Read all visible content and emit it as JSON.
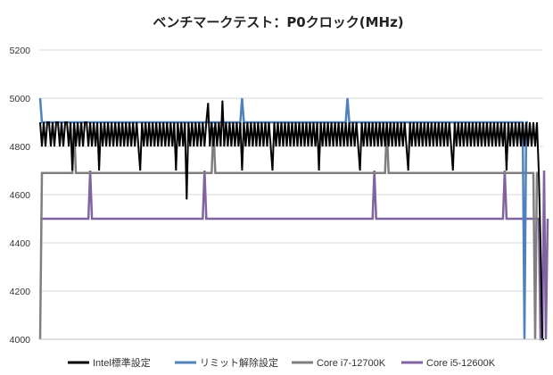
{
  "chart_data": {
    "type": "line",
    "title": "ベンチマークテスト：P0クロック(MHz)",
    "xlabel": "",
    "ylabel": "",
    "ylim": [
      4000,
      5200
    ],
    "yticks": [
      4000,
      4200,
      4400,
      4600,
      4800,
      5000,
      5200
    ],
    "grid": true,
    "legend_position": "bottom",
    "samples": 280,
    "series": [
      {
        "name": "Intel標準設定",
        "color": "#000000",
        "values": [
          4900,
          4800,
          4900,
          4800,
          4900,
          4900,
          4800,
          4900,
          4800,
          4900,
          4900,
          4800,
          4900,
          4800,
          4900,
          4900,
          4800,
          4900,
          4700,
          4900,
          4800,
          4900,
          4800,
          4900,
          4800,
          4900,
          4900,
          4800,
          4900,
          4800,
          4900,
          4800,
          4900,
          4700,
          4900,
          4800,
          4900,
          4800,
          4900,
          4800,
          4900,
          4800,
          4900,
          4800,
          4900,
          4800,
          4900,
          4800,
          4900,
          4800,
          4900,
          4800,
          4900,
          4800,
          4900,
          4800,
          4700,
          4900,
          4800,
          4900,
          4800,
          4900,
          4800,
          4900,
          4800,
          4900,
          4800,
          4900,
          4800,
          4900,
          4800,
          4900,
          4800,
          4900,
          4800,
          4900,
          4700,
          4900,
          4800,
          4900,
          4800,
          4900,
          4580,
          4900,
          4800,
          4900,
          4800,
          4900,
          4800,
          4900,
          4800,
          4900,
          4800,
          4900,
          4980,
          4800,
          4900,
          4800,
          4900,
          4800,
          4900,
          4800,
          4990,
          4800,
          4900,
          4800,
          4900,
          4800,
          4900,
          4800,
          4900,
          4800,
          4900,
          4700,
          4900,
          4800,
          4900,
          4800,
          4900,
          4800,
          4900,
          4800,
          4900,
          4800,
          4900,
          4800,
          4900,
          4800,
          4900,
          4800,
          4700,
          4900,
          4800,
          4900,
          4800,
          4900,
          4800,
          4900,
          4800,
          4900,
          4800,
          4900,
          4800,
          4900,
          4800,
          4900,
          4800,
          4900,
          4800,
          4900,
          4800,
          4900,
          4800,
          4900,
          4800,
          4900,
          4700,
          4900,
          4800,
          4900,
          4800,
          4900,
          4800,
          4900,
          4800,
          4900,
          4800,
          4900,
          4800,
          4900,
          4800,
          4900,
          4800,
          4900,
          4800,
          4900,
          4800,
          4900,
          4800,
          4700,
          4900,
          4800,
          4900,
          4800,
          4900,
          4800,
          4900,
          4800,
          4900,
          4800,
          4900,
          4800,
          4900,
          4800,
          4900,
          4800,
          4900,
          4800,
          4900,
          4800,
          4900,
          4800,
          4900,
          4800,
          4900,
          4800,
          4700,
          4900,
          4800,
          4900,
          4800,
          4900,
          4800,
          4900,
          4800,
          4900,
          4800,
          4900,
          4800,
          4900,
          4800,
          4900,
          4800,
          4900,
          4800,
          4900,
          4800,
          4900,
          4800,
          4900,
          4800,
          4700,
          4900,
          4800,
          4900,
          4800,
          4900,
          4800,
          4900,
          4800,
          4900,
          4800,
          4900,
          4800,
          4900,
          4800,
          4900,
          4800,
          4900,
          4800,
          4900,
          4800,
          4900,
          4800,
          4900,
          4800,
          4900,
          4800,
          4900,
          4800,
          4900,
          4700,
          4900,
          4800,
          4900,
          4800,
          4900,
          4800,
          4900,
          4800,
          4900,
          4800,
          4900,
          4800,
          4900,
          4800,
          4900,
          4800,
          4900,
          4700,
          4400,
          4000,
          4000
        ]
      },
      {
        "name": "リミット解除設定",
        "color": "#4F81BD",
        "values": [
          5000,
          4900,
          4900,
          4900,
          4900,
          4900,
          4900,
          4900,
          4900,
          4900,
          4900,
          4900,
          4900,
          4900,
          4900,
          4900,
          4900,
          4900,
          4900,
          4900,
          4900,
          4900,
          4900,
          4900,
          4900,
          4900,
          4900,
          4900,
          4900,
          4900,
          4900,
          4900,
          4900,
          4900,
          4900,
          4900,
          4900,
          4900,
          4900,
          4900,
          4900,
          4900,
          4900,
          4900,
          4900,
          4900,
          4900,
          4900,
          4900,
          4900,
          4900,
          4900,
          4900,
          4900,
          4900,
          4900,
          4900,
          4900,
          4900,
          4900,
          4900,
          4900,
          4900,
          4900,
          4900,
          4900,
          4900,
          4900,
          4900,
          4900,
          4900,
          4900,
          4900,
          4900,
          4900,
          4900,
          4900,
          4900,
          4900,
          4900,
          4900,
          4900,
          4900,
          4900,
          4900,
          4900,
          4900,
          4900,
          4900,
          4900,
          4900,
          4900,
          4900,
          4900,
          4900,
          4900,
          4900,
          4900,
          4900,
          4900,
          4900,
          4900,
          4900,
          4900,
          4900,
          4900,
          4900,
          4900,
          4900,
          4900,
          4900,
          4900,
          4900,
          5000,
          4900,
          4900,
          4900,
          4900,
          4900,
          4900,
          4900,
          4900,
          4900,
          4900,
          4900,
          4900,
          4900,
          4900,
          4900,
          4900,
          4900,
          4900,
          4900,
          4900,
          4900,
          4900,
          4900,
          4900,
          4900,
          4900,
          4900,
          4900,
          4900,
          4900,
          4900,
          4900,
          4900,
          4900,
          4900,
          4900,
          4900,
          4900,
          4900,
          4900,
          4900,
          4900,
          4900,
          4900,
          4900,
          4900,
          4900,
          4900,
          4900,
          4900,
          4900,
          4900,
          4900,
          4900,
          4900,
          4900,
          4900,
          4900,
          5000,
          4900,
          4900,
          4900,
          4900,
          4900,
          4900,
          4900,
          4900,
          4900,
          4900,
          4900,
          4900,
          4900,
          4900,
          4900,
          4900,
          4900,
          4900,
          4900,
          4900,
          4900,
          4900,
          4900,
          4900,
          4900,
          4900,
          4900,
          4900,
          4900,
          4900,
          4900,
          4900,
          4900,
          4900,
          4900,
          4900,
          4900,
          4900,
          4900,
          4900,
          4900,
          4900,
          4900,
          4900,
          4900,
          4900,
          4900,
          4900,
          4900,
          4900,
          4900,
          4900,
          4900,
          4900,
          4900,
          4900,
          4900,
          4900,
          4900,
          4900,
          4900,
          4900,
          4900,
          4900,
          4900,
          4900,
          4900,
          4900,
          4900,
          4900,
          4900,
          4900,
          4900,
          4900,
          4900,
          4900,
          4900,
          4900,
          4900,
          4900,
          4900,
          4900,
          4900,
          4900,
          4900,
          4900,
          4900,
          4900,
          4900,
          4900,
          4900,
          4900,
          4900,
          4900,
          4900,
          4900,
          4900,
          4900,
          4000,
          4900,
          4900
        ]
      },
      {
        "name": "Core i7-12700K",
        "color": "#7F7F7F",
        "values": [
          4000,
          4690,
          4690,
          4690,
          4690,
          4690,
          4690,
          4690,
          4690,
          4690,
          4690,
          4690,
          4690,
          4690,
          4690,
          4690,
          4690,
          4690,
          4690,
          4880,
          4690,
          4690,
          4690,
          4690,
          4690,
          4690,
          4690,
          4690,
          4690,
          4690,
          4690,
          4690,
          4690,
          4690,
          4690,
          4690,
          4690,
          4690,
          4690,
          4690,
          4690,
          4690,
          4690,
          4690,
          4690,
          4690,
          4690,
          4690,
          4690,
          4690,
          4690,
          4690,
          4690,
          4690,
          4690,
          4690,
          4690,
          4690,
          4690,
          4690,
          4690,
          4690,
          4690,
          4690,
          4690,
          4690,
          4690,
          4690,
          4690,
          4690,
          4690,
          4690,
          4690,
          4690,
          4690,
          4690,
          4690,
          4690,
          4690,
          4690,
          4690,
          4690,
          4690,
          4690,
          4690,
          4690,
          4690,
          4690,
          4690,
          4690,
          4690,
          4690,
          4690,
          4690,
          4690,
          4690,
          4690,
          4880,
          4690,
          4690,
          4690,
          4690,
          4690,
          4690,
          4690,
          4690,
          4690,
          4690,
          4690,
          4690,
          4690,
          4690,
          4690,
          4690,
          4690,
          4690,
          4690,
          4690,
          4690,
          4690,
          4690,
          4690,
          4690,
          4690,
          4690,
          4690,
          4690,
          4690,
          4690,
          4690,
          4690,
          4690,
          4690,
          4690,
          4690,
          4690,
          4690,
          4690,
          4690,
          4690,
          4690,
          4690,
          4690,
          4690,
          4690,
          4690,
          4690,
          4690,
          4690,
          4690,
          4690,
          4690,
          4690,
          4690,
          4690,
          4690,
          4690,
          4690,
          4690,
          4690,
          4690,
          4690,
          4690,
          4690,
          4690,
          4690,
          4690,
          4690,
          4690,
          4690,
          4690,
          4690,
          4690,
          4690,
          4690,
          4690,
          4690,
          4690,
          4690,
          4690,
          4690,
          4690,
          4690,
          4690,
          4690,
          4690,
          4690,
          4690,
          4690,
          4690,
          4690,
          4690,
          4690,
          4690,
          4880,
          4690,
          4690,
          4690,
          4690,
          4690,
          4690,
          4690,
          4690,
          4690,
          4690,
          4690,
          4690,
          4690,
          4690,
          4690,
          4690,
          4690,
          4690,
          4690,
          4690,
          4690,
          4690,
          4690,
          4690,
          4690,
          4690,
          4690,
          4690,
          4690,
          4690,
          4690,
          4690,
          4690,
          4690,
          4690,
          4690,
          4690,
          4690,
          4690,
          4690,
          4690,
          4690,
          4690,
          4690,
          4690,
          4690,
          4690,
          4690,
          4690,
          4690,
          4690,
          4690,
          4690,
          4690,
          4690,
          4690,
          4690,
          4690,
          4690,
          4690,
          4690,
          4690,
          4690,
          4690,
          4690,
          4690,
          4690,
          4690,
          4690,
          4690,
          4690,
          4690,
          4690,
          4690,
          4690,
          4690,
          4690,
          4690,
          4690,
          4690,
          4690,
          4690,
          4000,
          4690,
          4690
        ]
      },
      {
        "name": "Core i5-12600K",
        "color": "#8064A2",
        "values": [
          4500,
          4500,
          4500,
          4500,
          4500,
          4500,
          4500,
          4500,
          4500,
          4500,
          4500,
          4500,
          4500,
          4500,
          4500,
          4500,
          4500,
          4500,
          4500,
          4500,
          4500,
          4500,
          4500,
          4500,
          4500,
          4500,
          4500,
          4500,
          4700,
          4500,
          4500,
          4500,
          4500,
          4500,
          4500,
          4500,
          4500,
          4500,
          4500,
          4500,
          4500,
          4500,
          4500,
          4500,
          4500,
          4500,
          4500,
          4500,
          4500,
          4500,
          4500,
          4500,
          4500,
          4500,
          4500,
          4500,
          4500,
          4500,
          4500,
          4500,
          4500,
          4500,
          4500,
          4500,
          4500,
          4500,
          4500,
          4500,
          4500,
          4500,
          4500,
          4500,
          4500,
          4500,
          4500,
          4500,
          4500,
          4500,
          4500,
          4500,
          4500,
          4500,
          4500,
          4500,
          4500,
          4500,
          4500,
          4500,
          4500,
          4500,
          4500,
          4500,
          4700,
          4500,
          4500,
          4500,
          4500,
          4500,
          4500,
          4500,
          4500,
          4500,
          4500,
          4500,
          4500,
          4500,
          4500,
          4500,
          4500,
          4500,
          4500,
          4500,
          4500,
          4500,
          4500,
          4500,
          4500,
          4500,
          4500,
          4500,
          4500,
          4500,
          4500,
          4500,
          4500,
          4500,
          4500,
          4500,
          4500,
          4500,
          4500,
          4500,
          4500,
          4500,
          4500,
          4500,
          4500,
          4500,
          4500,
          4500,
          4500,
          4500,
          4500,
          4500,
          4500,
          4500,
          4500,
          4500,
          4500,
          4500,
          4500,
          4500,
          4500,
          4500,
          4500,
          4500,
          4500,
          4500,
          4500,
          4500,
          4500,
          4500,
          4500,
          4500,
          4500,
          4500,
          4500,
          4500,
          4500,
          4500,
          4500,
          4500,
          4500,
          4500,
          4500,
          4500,
          4500,
          4500,
          4500,
          4500,
          4500,
          4500,
          4500,
          4500,
          4500,
          4500,
          4500,
          4700,
          4500,
          4500,
          4500,
          4500,
          4500,
          4500,
          4500,
          4500,
          4500,
          4500,
          4500,
          4500,
          4500,
          4500,
          4500,
          4500,
          4500,
          4500,
          4500,
          4500,
          4500,
          4500,
          4500,
          4500,
          4500,
          4500,
          4500,
          4500,
          4500,
          4500,
          4500,
          4500,
          4500,
          4500,
          4500,
          4500,
          4500,
          4500,
          4500,
          4500,
          4500,
          4500,
          4500,
          4500,
          4500,
          4500,
          4500,
          4500,
          4500,
          4500,
          4500,
          4500,
          4500,
          4500,
          4500,
          4500,
          4500,
          4500,
          4500,
          4500,
          4500,
          4500,
          4500,
          4500,
          4500,
          4500,
          4500,
          4500,
          4500,
          4500,
          4500,
          4500,
          4700,
          4500,
          4500,
          4500,
          4500,
          4500,
          4500,
          4500,
          4500,
          4500,
          4500,
          4500,
          4500,
          4500,
          4500,
          4500,
          4500,
          4500,
          4500,
          4500,
          4000,
          4000,
          4700,
          4000,
          4500
        ]
      }
    ]
  }
}
